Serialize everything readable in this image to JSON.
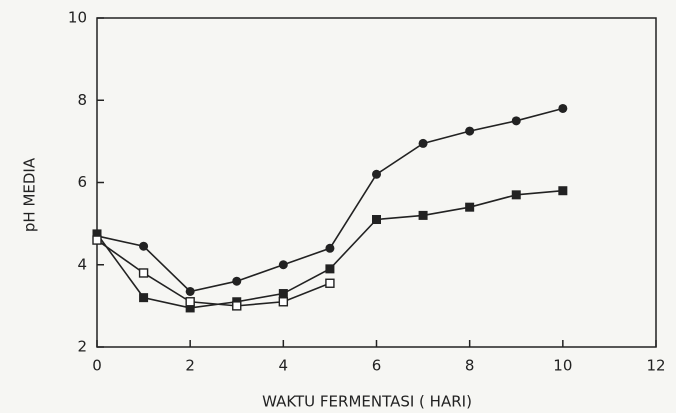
{
  "chart_data": {
    "type": "line",
    "xlabel": "WAKTU FERMENTASI ( HARI)",
    "ylabel": "pH MEDIA",
    "x": [
      0,
      1,
      2,
      3,
      4,
      5,
      6,
      7,
      8,
      9,
      10
    ],
    "series": [
      {
        "color": "#222222",
        "marker": "circle",
        "values": [
          4.7,
          4.45,
          3.35,
          3.6,
          4.0,
          4.4,
          6.2,
          6.95,
          7.25,
          7.5,
          7.8
        ]
      },
      {
        "color": "#222222",
        "marker": "square",
        "values": [
          4.75,
          3.2,
          2.95,
          3.1,
          3.3,
          3.9,
          5.1,
          5.2,
          5.4,
          5.7,
          5.8
        ]
      },
      {
        "color": "#222222",
        "marker": "open-square",
        "values": [
          4.6,
          3.8,
          3.1,
          3.0,
          3.1,
          3.55,
          null,
          null,
          null,
          null,
          null
        ]
      }
    ],
    "xlim": [
      0,
      12
    ],
    "xticks": [
      0,
      2,
      4,
      6,
      8,
      10,
      12
    ],
    "ylim": [
      2,
      10
    ],
    "yticks": [
      2,
      4,
      6,
      8,
      10
    ]
  }
}
